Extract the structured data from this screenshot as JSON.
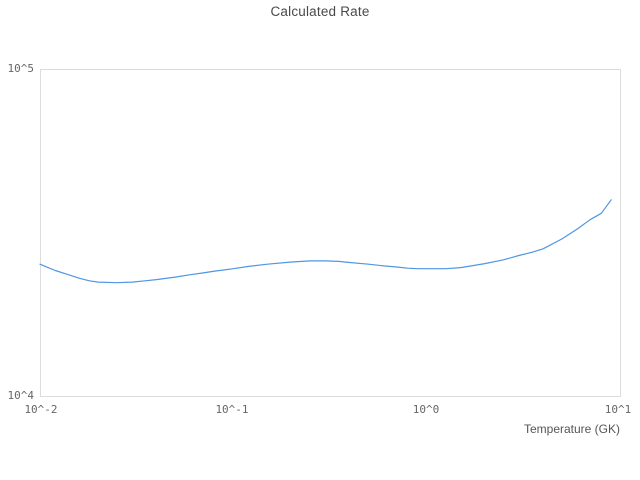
{
  "chart_data": {
    "type": "line",
    "title": "Calculated Rate",
    "xlabel": "Temperature (GK)",
    "ylabel": "",
    "x_scale": "log",
    "y_scale": "log",
    "xlim": [
      0.01,
      10
    ],
    "ylim": [
      10000,
      100000
    ],
    "x_tick_labels": [
      "10^-2",
      "10^-1",
      "10^0",
      "10^1"
    ],
    "y_tick_labels": [
      "10^4",
      "10^5"
    ],
    "grid": false,
    "legend": false,
    "series": [
      {
        "name": "Calculated Rate",
        "color": "#4f96e3",
        "x": [
          0.01,
          0.011,
          0.012,
          0.014,
          0.016,
          0.018,
          0.02,
          0.025,
          0.03,
          0.035,
          0.04,
          0.05,
          0.06,
          0.07,
          0.08,
          0.09,
          0.1,
          0.12,
          0.15,
          0.2,
          0.25,
          0.3,
          0.35,
          0.4,
          0.5,
          0.6,
          0.7,
          0.8,
          0.9,
          1.0,
          1.25,
          1.5,
          2.0,
          2.5,
          3.0,
          3.5,
          4.0,
          5.0,
          6.0,
          7.0,
          8.0,
          9.0
        ],
        "y": [
          25300,
          24700,
          24200,
          23500,
          22900,
          22500,
          22300,
          22200,
          22300,
          22500,
          22700,
          23100,
          23500,
          23800,
          24100,
          24300,
          24500,
          24900,
          25300,
          25700,
          25900,
          25900,
          25800,
          25600,
          25300,
          25000,
          24800,
          24600,
          24500,
          24500,
          24500,
          24700,
          25400,
          26100,
          26900,
          27500,
          28200,
          30200,
          32400,
          34600,
          36200,
          39800
        ]
      }
    ]
  }
}
